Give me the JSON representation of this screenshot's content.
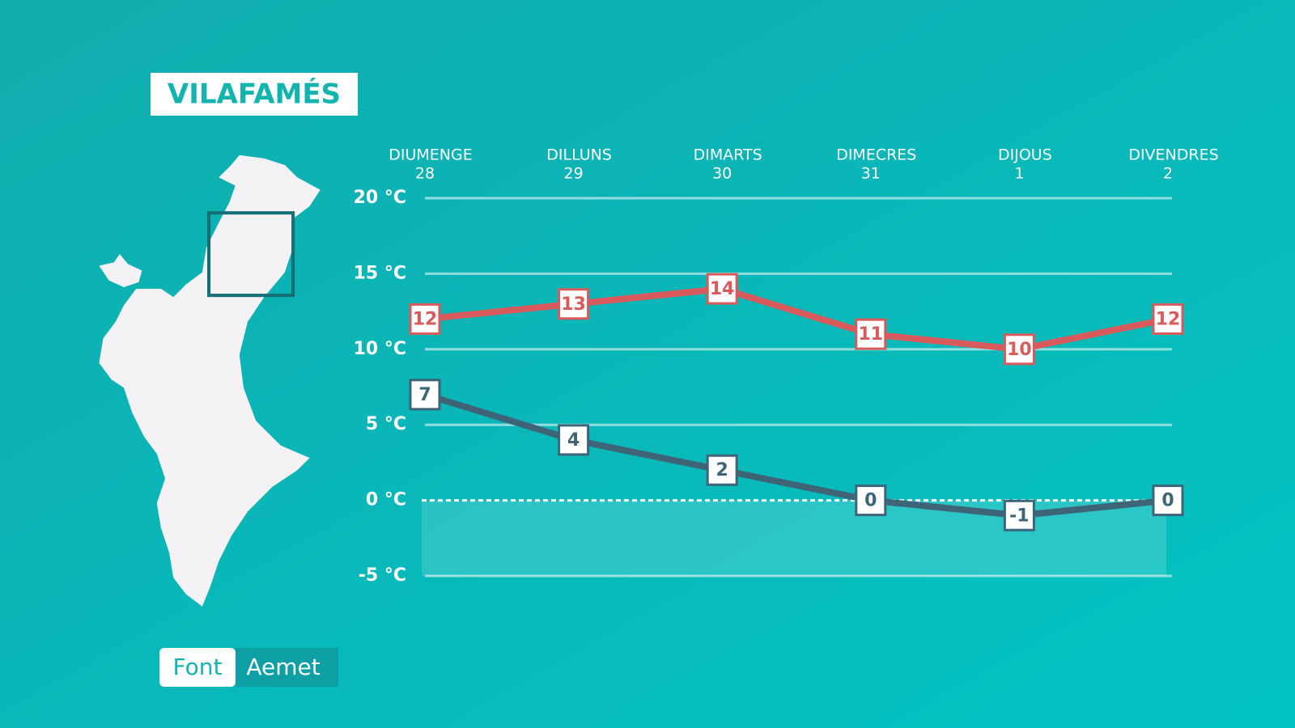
{
  "chart_data": {
    "type": "line",
    "title": "VILAFAMÉS",
    "categories": [
      "DIUMENGE",
      "DILLUNS",
      "DIMARTS",
      "DIMECRES",
      "DIJOUS",
      "DIVENDRES"
    ],
    "category_dates": [
      "28",
      "29",
      "30",
      "31",
      "1",
      "2"
    ],
    "series": [
      {
        "color": "#d95a5c",
        "values": [
          12,
          13,
          14,
          11,
          10,
          12
        ]
      },
      {
        "color": "#3e6577",
        "values": [
          7,
          4,
          2,
          0,
          -1,
          0
        ]
      }
    ],
    "ylim": [
      -5,
      20
    ],
    "yticks": [
      {
        "value": -5,
        "label": "-5 °C"
      },
      {
        "value": 0,
        "label": "0 °C"
      },
      {
        "value": 5,
        "label": "5 °C"
      },
      {
        "value": 10,
        "label": "10 °C"
      },
      {
        "value": 15,
        "label": "15 °C"
      },
      {
        "value": 20,
        "label": "20 °C"
      }
    ],
    "grid": true,
    "source_label": "Font",
    "source": "Aemet"
  }
}
